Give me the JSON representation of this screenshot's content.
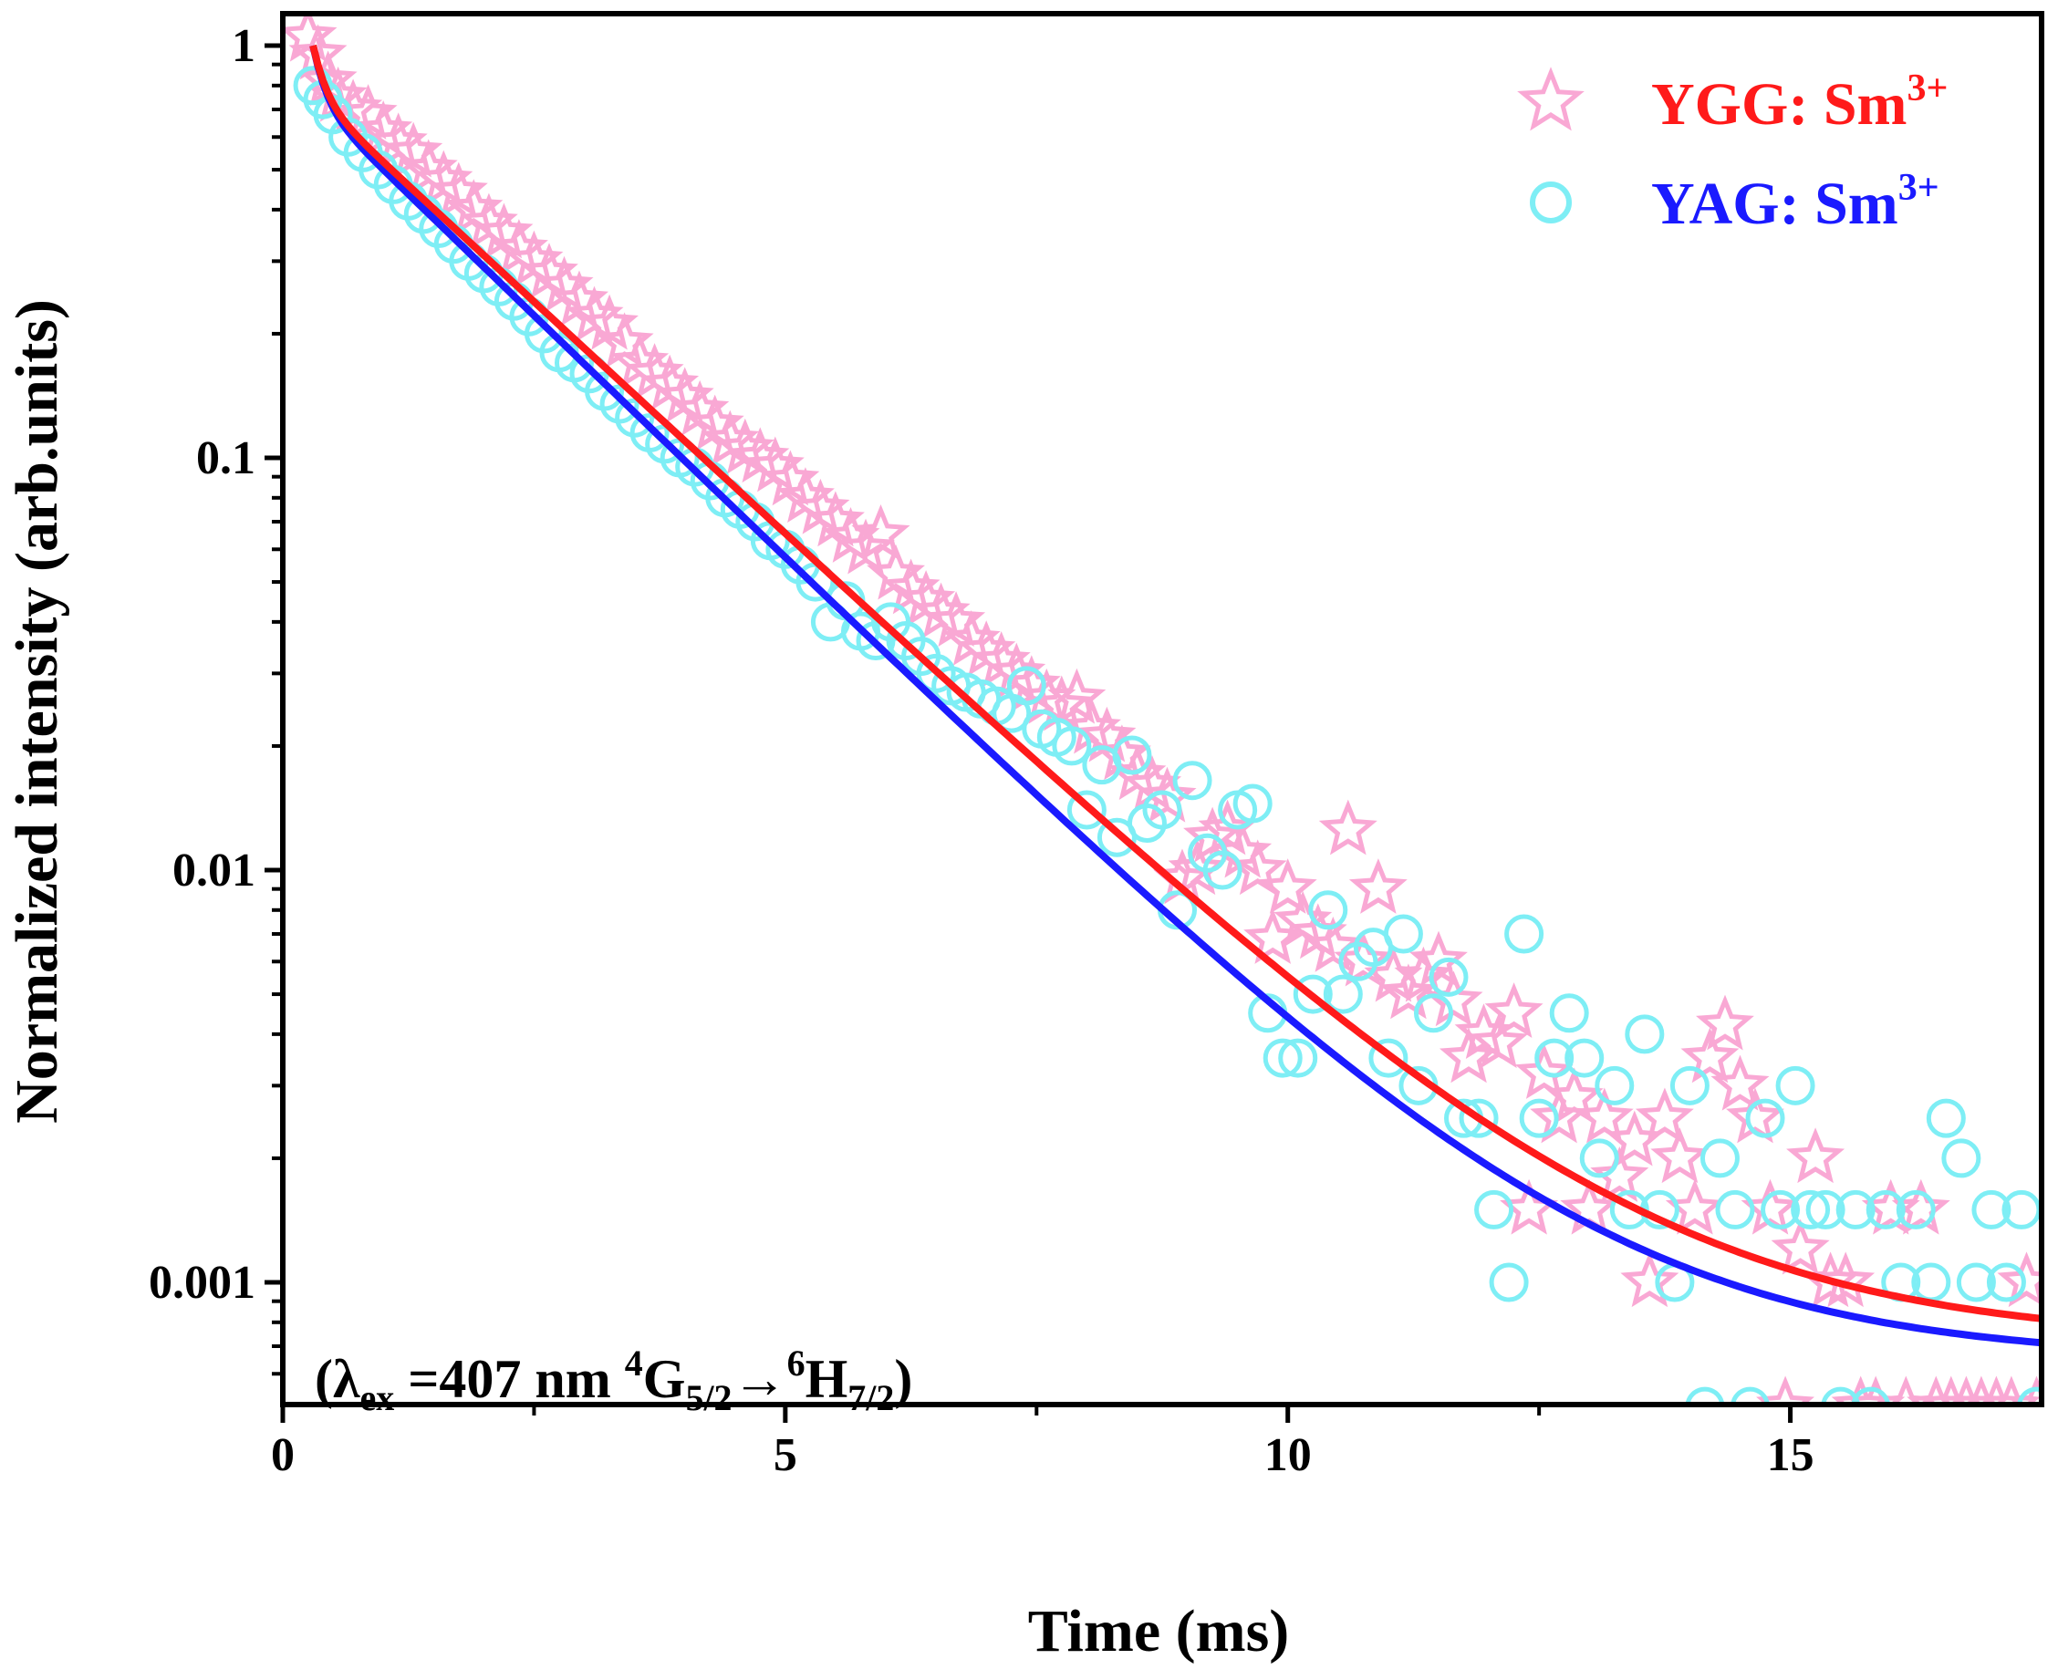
{
  "chart_data": {
    "type": "scatter",
    "xlabel": "Time (ms)",
    "ylabel": "Normalized intensity (arb.units)",
    "xlim": [
      0,
      17.5
    ],
    "ylim": [
      0.0005,
      1.2
    ],
    "yscale": "log",
    "xticks": [
      0,
      5,
      10,
      15
    ],
    "xtick_labels": [
      "0",
      "5",
      "10",
      "15"
    ],
    "yticks": [
      1,
      0.1,
      0.01,
      0.001
    ],
    "ytick_labels": [
      "1",
      "0.1",
      "0.01",
      "0.001"
    ],
    "grid": false,
    "legend_position": "top-right",
    "annotation": {
      "open": "(λ",
      "sub1": "ex",
      "mid": " =407 nm  ",
      "sup1": "4",
      "g": "G",
      "sub2": "5/2",
      "arrow": "→",
      "sup2": "6",
      "h": "H",
      "sub3": "7/2",
      "close": ")"
    },
    "series": [
      {
        "name": "YGG: Sm",
        "name_sup": "3+",
        "marker": "star",
        "marker_color": "#f9a8d4",
        "fit_color": "#ff1a1a",
        "points": [
          [
            0.25,
            1.05
          ],
          [
            0.35,
            0.95
          ],
          [
            0.45,
            0.82
          ],
          [
            0.55,
            0.75
          ],
          [
            0.7,
            0.7
          ],
          [
            0.85,
            0.68
          ],
          [
            1.0,
            0.62
          ],
          [
            1.15,
            0.58
          ],
          [
            1.3,
            0.55
          ],
          [
            1.45,
            0.5
          ],
          [
            1.6,
            0.47
          ],
          [
            1.75,
            0.44
          ],
          [
            1.9,
            0.4
          ],
          [
            2.05,
            0.37
          ],
          [
            2.2,
            0.35
          ],
          [
            2.35,
            0.32
          ],
          [
            2.5,
            0.3
          ],
          [
            2.65,
            0.28
          ],
          [
            2.8,
            0.26
          ],
          [
            2.95,
            0.24
          ],
          [
            3.1,
            0.22
          ],
          [
            3.25,
            0.21
          ],
          [
            3.4,
            0.19
          ],
          [
            3.55,
            0.17
          ],
          [
            3.7,
            0.16
          ],
          [
            3.85,
            0.15
          ],
          [
            4.0,
            0.14
          ],
          [
            4.15,
            0.13
          ],
          [
            4.3,
            0.12
          ],
          [
            4.45,
            0.11
          ],
          [
            4.6,
            0.105
          ],
          [
            4.75,
            0.1
          ],
          [
            4.9,
            0.095
          ],
          [
            5.05,
            0.088
          ],
          [
            5.2,
            0.08
          ],
          [
            5.35,
            0.075
          ],
          [
            5.5,
            0.07
          ],
          [
            5.65,
            0.064
          ],
          [
            5.8,
            0.06
          ],
          [
            5.95,
            0.065
          ],
          [
            6.1,
            0.052
          ],
          [
            6.25,
            0.048
          ],
          [
            6.4,
            0.045
          ],
          [
            6.55,
            0.042
          ],
          [
            6.7,
            0.04
          ],
          [
            6.85,
            0.036
          ],
          [
            7.0,
            0.034
          ],
          [
            7.15,
            0.032
          ],
          [
            7.3,
            0.03
          ],
          [
            7.45,
            0.028
          ],
          [
            7.6,
            0.026
          ],
          [
            7.75,
            0.025
          ],
          [
            7.9,
            0.026
          ],
          [
            8.05,
            0.022
          ],
          [
            8.2,
            0.021
          ],
          [
            8.35,
            0.019
          ],
          [
            8.5,
            0.017
          ],
          [
            8.65,
            0.016
          ],
          [
            8.8,
            0.015
          ],
          [
            8.95,
            0.0095
          ],
          [
            9.1,
            0.01
          ],
          [
            9.25,
            0.012
          ],
          [
            9.4,
            0.0125
          ],
          [
            9.55,
            0.011
          ],
          [
            9.7,
            0.01
          ],
          [
            9.85,
            0.0068
          ],
          [
            10.0,
            0.009
          ],
          [
            10.15,
            0.0075
          ],
          [
            10.3,
            0.007
          ],
          [
            10.45,
            0.0065
          ],
          [
            10.6,
            0.0125
          ],
          [
            10.75,
            0.006
          ],
          [
            10.9,
            0.009
          ],
          [
            11.05,
            0.0055
          ],
          [
            11.2,
            0.005
          ],
          [
            11.35,
            0.0055
          ],
          [
            11.5,
            0.006
          ],
          [
            11.65,
            0.0048
          ],
          [
            11.8,
            0.0035
          ],
          [
            11.95,
            0.004
          ],
          [
            12.1,
            0.0038
          ],
          [
            12.25,
            0.0045
          ],
          [
            12.4,
            0.0015
          ],
          [
            12.55,
            0.0032
          ],
          [
            12.7,
            0.0025
          ],
          [
            12.85,
            0.0028
          ],
          [
            13.0,
            0.0015
          ],
          [
            13.15,
            0.0025
          ],
          [
            13.3,
            0.0018
          ],
          [
            13.45,
            0.0022
          ],
          [
            13.6,
            0.001
          ],
          [
            13.75,
            0.0025
          ],
          [
            13.9,
            0.002
          ],
          [
            14.05,
            0.0015
          ],
          [
            14.2,
            0.0035
          ],
          [
            14.35,
            0.0042
          ],
          [
            14.5,
            0.003
          ],
          [
            14.65,
            0.0025
          ],
          [
            14.8,
            0.0015
          ],
          [
            14.95,
            0.0005
          ],
          [
            15.1,
            0.0012
          ],
          [
            15.25,
            0.002
          ],
          [
            15.4,
            0.001
          ],
          [
            15.55,
            0.001
          ],
          [
            15.7,
            0.0005
          ],
          [
            15.85,
            0.0005
          ],
          [
            16.0,
            0.0015
          ],
          [
            16.15,
            0.0005
          ],
          [
            16.3,
            0.0015
          ],
          [
            16.45,
            0.0005
          ],
          [
            16.6,
            0.0005
          ],
          [
            16.75,
            0.0005
          ],
          [
            16.9,
            0.0005
          ],
          [
            17.05,
            0.0005
          ],
          [
            17.2,
            0.0005
          ],
          [
            17.35,
            0.001
          ],
          [
            17.45,
            0.0005
          ]
        ]
      },
      {
        "name": "YAG: Sm",
        "name_sup": "3+",
        "marker": "circle",
        "marker_color": "#7eeef5",
        "fit_color": "#1a1aff",
        "points": [
          [
            0.3,
            0.8
          ],
          [
            0.4,
            0.74
          ],
          [
            0.5,
            0.68
          ],
          [
            0.65,
            0.6
          ],
          [
            0.8,
            0.55
          ],
          [
            0.95,
            0.5
          ],
          [
            1.1,
            0.46
          ],
          [
            1.25,
            0.42
          ],
          [
            1.4,
            0.39
          ],
          [
            1.55,
            0.36
          ],
          [
            1.7,
            0.33
          ],
          [
            1.85,
            0.3
          ],
          [
            2.0,
            0.28
          ],
          [
            2.15,
            0.26
          ],
          [
            2.3,
            0.24
          ],
          [
            2.45,
            0.22
          ],
          [
            2.6,
            0.2
          ],
          [
            2.75,
            0.18
          ],
          [
            2.9,
            0.17
          ],
          [
            3.05,
            0.16
          ],
          [
            3.2,
            0.145
          ],
          [
            3.35,
            0.135
          ],
          [
            3.5,
            0.125
          ],
          [
            3.65,
            0.115
          ],
          [
            3.8,
            0.108
          ],
          [
            3.95,
            0.1
          ],
          [
            4.1,
            0.095
          ],
          [
            4.25,
            0.088
          ],
          [
            4.4,
            0.08
          ],
          [
            4.55,
            0.075
          ],
          [
            4.7,
            0.07
          ],
          [
            4.85,
            0.063
          ],
          [
            5.0,
            0.06
          ],
          [
            5.15,
            0.055
          ],
          [
            5.3,
            0.05
          ],
          [
            5.45,
            0.04
          ],
          [
            5.6,
            0.045
          ],
          [
            5.75,
            0.038
          ],
          [
            5.9,
            0.036
          ],
          [
            6.05,
            0.04
          ],
          [
            6.2,
            0.036
          ],
          [
            6.35,
            0.033
          ],
          [
            6.5,
            0.03
          ],
          [
            6.65,
            0.028
          ],
          [
            6.8,
            0.027
          ],
          [
            6.95,
            0.026
          ],
          [
            7.1,
            0.025
          ],
          [
            7.25,
            0.024
          ],
          [
            7.4,
            0.028
          ],
          [
            7.55,
            0.022
          ],
          [
            7.7,
            0.021
          ],
          [
            7.85,
            0.02
          ],
          [
            8.0,
            0.014
          ],
          [
            8.15,
            0.018
          ],
          [
            8.3,
            0.012
          ],
          [
            8.45,
            0.019
          ],
          [
            8.6,
            0.013
          ],
          [
            8.75,
            0.014
          ],
          [
            8.9,
            0.008
          ],
          [
            9.05,
            0.0165
          ],
          [
            9.2,
            0.011
          ],
          [
            9.35,
            0.01
          ],
          [
            9.5,
            0.014
          ],
          [
            9.65,
            0.0145
          ],
          [
            9.8,
            0.0045
          ],
          [
            9.95,
            0.0035
          ],
          [
            10.1,
            0.0035
          ],
          [
            10.25,
            0.005
          ],
          [
            10.4,
            0.008
          ],
          [
            10.55,
            0.005
          ],
          [
            10.7,
            0.006
          ],
          [
            10.85,
            0.0065
          ],
          [
            11.0,
            0.0035
          ],
          [
            11.15,
            0.007
          ],
          [
            11.3,
            0.003
          ],
          [
            11.45,
            0.0045
          ],
          [
            11.6,
            0.0055
          ],
          [
            11.75,
            0.0025
          ],
          [
            11.9,
            0.0025
          ],
          [
            12.05,
            0.0015
          ],
          [
            12.2,
            0.001
          ],
          [
            12.35,
            0.007
          ],
          [
            12.5,
            0.0025
          ],
          [
            12.65,
            0.0035
          ],
          [
            12.8,
            0.0045
          ],
          [
            12.95,
            0.0035
          ],
          [
            13.1,
            0.002
          ],
          [
            13.25,
            0.003
          ],
          [
            13.4,
            0.0015
          ],
          [
            13.55,
            0.004
          ],
          [
            13.7,
            0.0015
          ],
          [
            13.85,
            0.001
          ],
          [
            14.0,
            0.003
          ],
          [
            14.15,
            0.0005
          ],
          [
            14.3,
            0.002
          ],
          [
            14.45,
            0.0015
          ],
          [
            14.6,
            0.0005
          ],
          [
            14.75,
            0.0025
          ],
          [
            14.9,
            0.0015
          ],
          [
            15.05,
            0.003
          ],
          [
            15.2,
            0.0015
          ],
          [
            15.35,
            0.0015
          ],
          [
            15.5,
            0.0005
          ],
          [
            15.65,
            0.0015
          ],
          [
            15.8,
            0.0005
          ],
          [
            15.95,
            0.0015
          ],
          [
            16.1,
            0.001
          ],
          [
            16.25,
            0.0015
          ],
          [
            16.4,
            0.001
          ],
          [
            16.55,
            0.0025
          ],
          [
            16.7,
            0.002
          ],
          [
            16.85,
            0.001
          ],
          [
            17.0,
            0.0015
          ],
          [
            17.15,
            0.001
          ],
          [
            17.3,
            0.0015
          ],
          [
            17.45,
            0.0005
          ]
        ]
      }
    ]
  }
}
